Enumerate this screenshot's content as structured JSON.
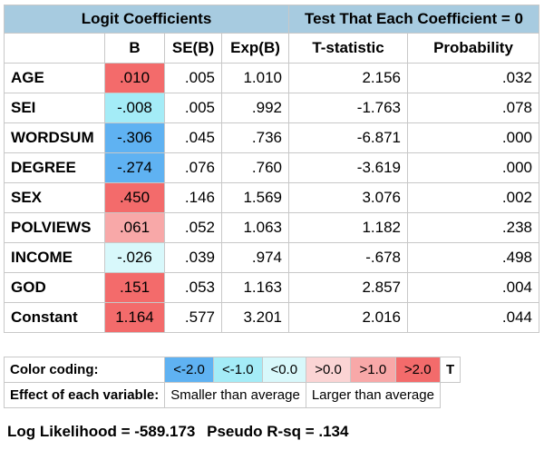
{
  "header": {
    "logit_title": "Logit Coefficients",
    "test_title": "Test That Each Coefficient = 0"
  },
  "columns": [
    "",
    "B",
    "SE(B)",
    "Exp(B)",
    "T-statistic",
    "Probability"
  ],
  "rows": [
    {
      "var": "AGE",
      "b": ".010",
      "se": ".005",
      "exp": "1.010",
      "t": "2.156",
      "p": ".032",
      "b_color": "#f36b6b"
    },
    {
      "var": "SEI",
      "b": "-.008",
      "se": ".005",
      "exp": ".992",
      "t": "-1.763",
      "p": ".078",
      "b_color": "#a4ecf7"
    },
    {
      "var": "WORDSUM",
      "b": "-.306",
      "se": ".045",
      "exp": ".736",
      "t": "-6.871",
      "p": ".000",
      "b_color": "#5fb2f2"
    },
    {
      "var": "DEGREE",
      "b": "-.274",
      "se": ".076",
      "exp": ".760",
      "t": "-3.619",
      "p": ".000",
      "b_color": "#5fb2f2"
    },
    {
      "var": "SEX",
      "b": ".450",
      "se": ".146",
      "exp": "1.569",
      "t": "3.076",
      "p": ".002",
      "b_color": "#f36b6b"
    },
    {
      "var": "POLVIEWS",
      "b": ".061",
      "se": ".052",
      "exp": "1.063",
      "t": "1.182",
      "p": ".238",
      "b_color": "#f8a8a8"
    },
    {
      "var": "INCOME",
      "b": "-.026",
      "se": ".039",
      "exp": ".974",
      "t": "-.678",
      "p": ".498",
      "b_color": "#d8f8fb"
    },
    {
      "var": "GOD",
      "b": ".151",
      "se": ".053",
      "exp": "1.163",
      "t": "2.857",
      "p": ".004",
      "b_color": "#f36b6b"
    },
    {
      "var": "Constant",
      "b": "1.164",
      "se": ".577",
      "exp": "3.201",
      "t": "2.016",
      "p": ".044",
      "b_color": "#f36b6b"
    }
  ],
  "legend": {
    "color_label": "Color coding:",
    "effect_label": "Effect of each variable:",
    "swatches": [
      {
        "label": "<-2.0",
        "color": "#5fb2f2"
      },
      {
        "label": "<-1.0",
        "color": "#a4ecf7"
      },
      {
        "label": "<0.0",
        "color": "#d8f8fb"
      },
      {
        "label": ">0.0",
        "color": "#fbd4d4"
      },
      {
        "label": ">1.0",
        "color": "#f8a8a8"
      },
      {
        "label": ">2.0",
        "color": "#f36b6b"
      }
    ],
    "t_label": "T",
    "smaller": "Smaller than average",
    "larger": "Larger than average"
  },
  "footer": {
    "log_likelihood": "Log Likelihood = -589.173",
    "pseudo_rsq": "Pseudo R-sq = .134"
  },
  "colors": {
    "header_bg": "#a7cbe0",
    "border": "#c8c8c8"
  }
}
